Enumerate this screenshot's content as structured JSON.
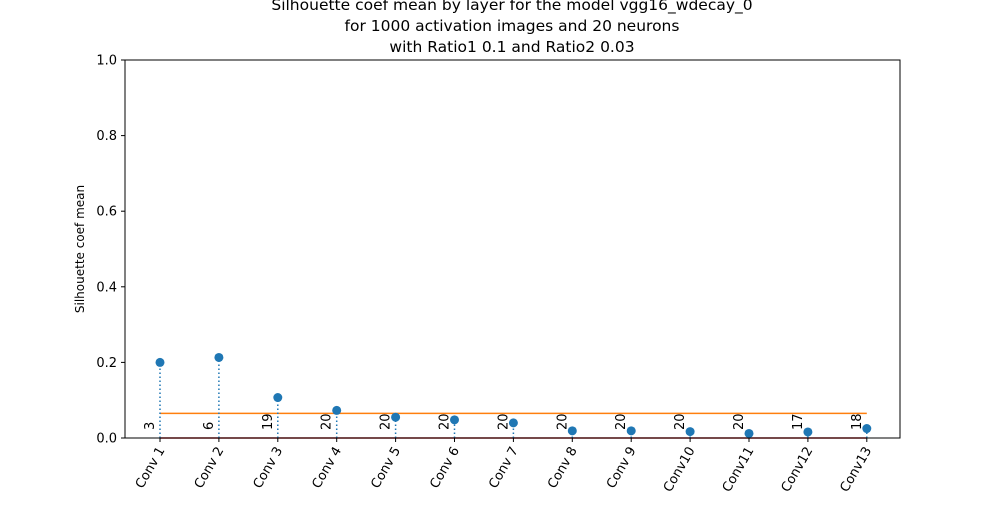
{
  "chart_data": {
    "type": "stem",
    "title_lines": [
      "Silhouette coef mean by layer for the model vgg16_wdecay_0",
      "for 1000 activation images and 20 neurons",
      "with Ratio1 0.1 and Ratio2 0.03"
    ],
    "xlabel": "",
    "ylabel": "Silhouette coef mean",
    "ylim": [
      0,
      1.0
    ],
    "yticks": [
      "0.0",
      "0.2",
      "0.4",
      "0.6",
      "0.8",
      "1.0"
    ],
    "categories": [
      "Conv 1",
      "Conv 2",
      "Conv 3",
      "Conv 4",
      "Conv 5",
      "Conv 6",
      "Conv 7",
      "Conv 8",
      "Conv 9",
      "Conv10",
      "Conv11",
      "Conv12",
      "Conv13"
    ],
    "values": [
      0.2,
      0.213,
      0.107,
      0.073,
      0.055,
      0.048,
      0.04,
      0.019,
      0.019,
      0.017,
      0.012,
      0.016,
      0.025
    ],
    "counts": [
      "3",
      "6",
      "19",
      "20",
      "20",
      "20",
      "20",
      "20",
      "20",
      "20",
      "20",
      "17",
      "18"
    ],
    "threshold": 0.065,
    "grid": false,
    "colors": {
      "marker": "#1f77b4",
      "threshold_line": "#ff7f0e",
      "baseline": "#d62728",
      "axes": "#000000"
    }
  }
}
